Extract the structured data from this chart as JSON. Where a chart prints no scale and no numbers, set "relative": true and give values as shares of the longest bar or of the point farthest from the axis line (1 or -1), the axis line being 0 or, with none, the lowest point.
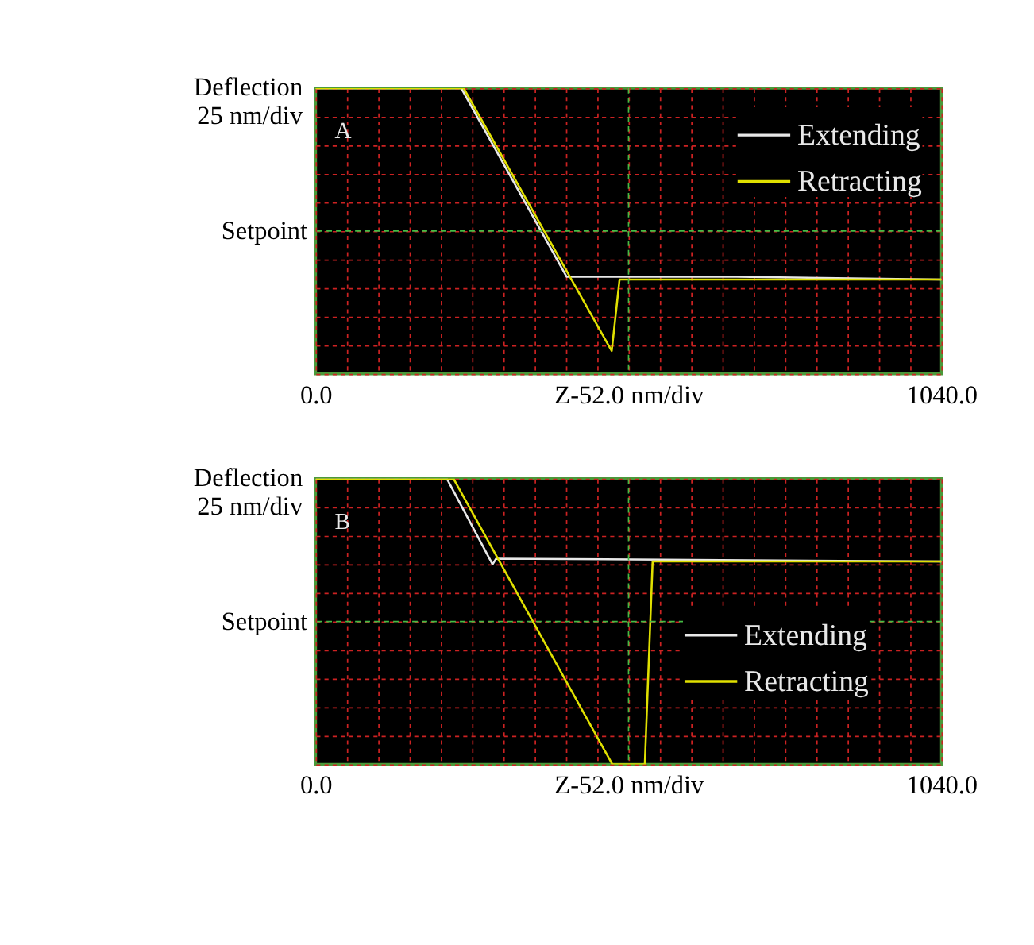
{
  "chart_data": [
    {
      "type": "line",
      "relative": true,
      "xlabel": "Z-52.0 nm/div",
      "ylabel": "Deflection\n25 nm/div",
      "annotations": [
        "A"
      ],
      "xlim": [
        0,
        1040
      ],
      "xticks": [
        {
          "value": 0,
          "label": "0.0"
        },
        {
          "value": 52,
          "label": null
        },
        {
          "value": 104,
          "label": null
        },
        {
          "value": 156,
          "label": null
        },
        {
          "value": 208,
          "label": null
        },
        {
          "value": 260,
          "label": null
        },
        {
          "value": 312,
          "label": null
        },
        {
          "value": 364,
          "label": null
        },
        {
          "value": 416,
          "label": null
        },
        {
          "value": 468,
          "label": null
        },
        {
          "value": 520,
          "label": null
        },
        {
          "value": 572,
          "label": null
        },
        {
          "value": 624,
          "label": null
        },
        {
          "value": 676,
          "label": null
        },
        {
          "value": 728,
          "label": null
        },
        {
          "value": 780,
          "label": null
        },
        {
          "value": 832,
          "label": null
        },
        {
          "value": 884,
          "label": null
        },
        {
          "value": 936,
          "label": null
        },
        {
          "value": 988,
          "label": null
        },
        {
          "value": 1040,
          "label": "1040.0"
        }
      ],
      "grid": true,
      "legend": "top right",
      "ref_lines": [
        {
          "axis": "y",
          "value": 0.5,
          "label": "Setpoint",
          "color": "#44bb44",
          "line_style": "dashed"
        },
        {
          "axis": "x",
          "value": 520,
          "label": null,
          "color": "#44bb44",
          "line_style": "dashed"
        }
      ],
      "series": [
        {
          "name": "Extending",
          "color": "#e8e8e8",
          "x": [
            0,
            242,
            417,
            700,
            1040
          ],
          "values": [
            1,
            1,
            0.34,
            0.34,
            0.33
          ]
        },
        {
          "name": "Retracting",
          "color": "#e0e000",
          "x": [
            0,
            246,
            492,
            505,
            1040
          ],
          "values": [
            1,
            1,
            0.08,
            0.33,
            0.33
          ]
        }
      ]
    },
    {
      "type": "line",
      "relative": true,
      "xlabel": "Z-52.0 nm/div",
      "ylabel": "Deflection\n25 nm/div",
      "annotations": [
        "B"
      ],
      "xlim": [
        0,
        1040
      ],
      "xticks": [
        {
          "value": 0,
          "label": "0.0"
        },
        {
          "value": 52,
          "label": null
        },
        {
          "value": 104,
          "label": null
        },
        {
          "value": 156,
          "label": null
        },
        {
          "value": 208,
          "label": null
        },
        {
          "value": 260,
          "label": null
        },
        {
          "value": 312,
          "label": null
        },
        {
          "value": 364,
          "label": null
        },
        {
          "value": 416,
          "label": null
        },
        {
          "value": 468,
          "label": null
        },
        {
          "value": 520,
          "label": null
        },
        {
          "value": 572,
          "label": null
        },
        {
          "value": 624,
          "label": null
        },
        {
          "value": 676,
          "label": null
        },
        {
          "value": 728,
          "label": null
        },
        {
          "value": 780,
          "label": null
        },
        {
          "value": 832,
          "label": null
        },
        {
          "value": 884,
          "label": null
        },
        {
          "value": 936,
          "label": null
        },
        {
          "value": 988,
          "label": null
        },
        {
          "value": 1040,
          "label": "1040.0"
        }
      ],
      "grid": true,
      "legend": "right",
      "ref_lines": [
        {
          "axis": "y",
          "value": 0.5,
          "label": "Setpoint",
          "color": "#44bb44",
          "line_style": "dashed"
        },
        {
          "axis": "x",
          "value": 520,
          "label": null,
          "color": "#44bb44",
          "line_style": "dashed"
        }
      ],
      "series": [
        {
          "name": "Extending",
          "color": "#e8e8e8",
          "x": [
            0,
            218,
            294,
            300,
            1040
          ],
          "values": [
            1,
            1,
            0.7,
            0.72,
            0.71
          ]
        },
        {
          "name": "Retracting",
          "color": "#e0e000",
          "x": [
            0,
            229,
            493,
            547,
            560,
            1040
          ],
          "values": [
            1,
            1,
            0,
            0,
            0.71,
            0.71
          ]
        }
      ]
    }
  ]
}
